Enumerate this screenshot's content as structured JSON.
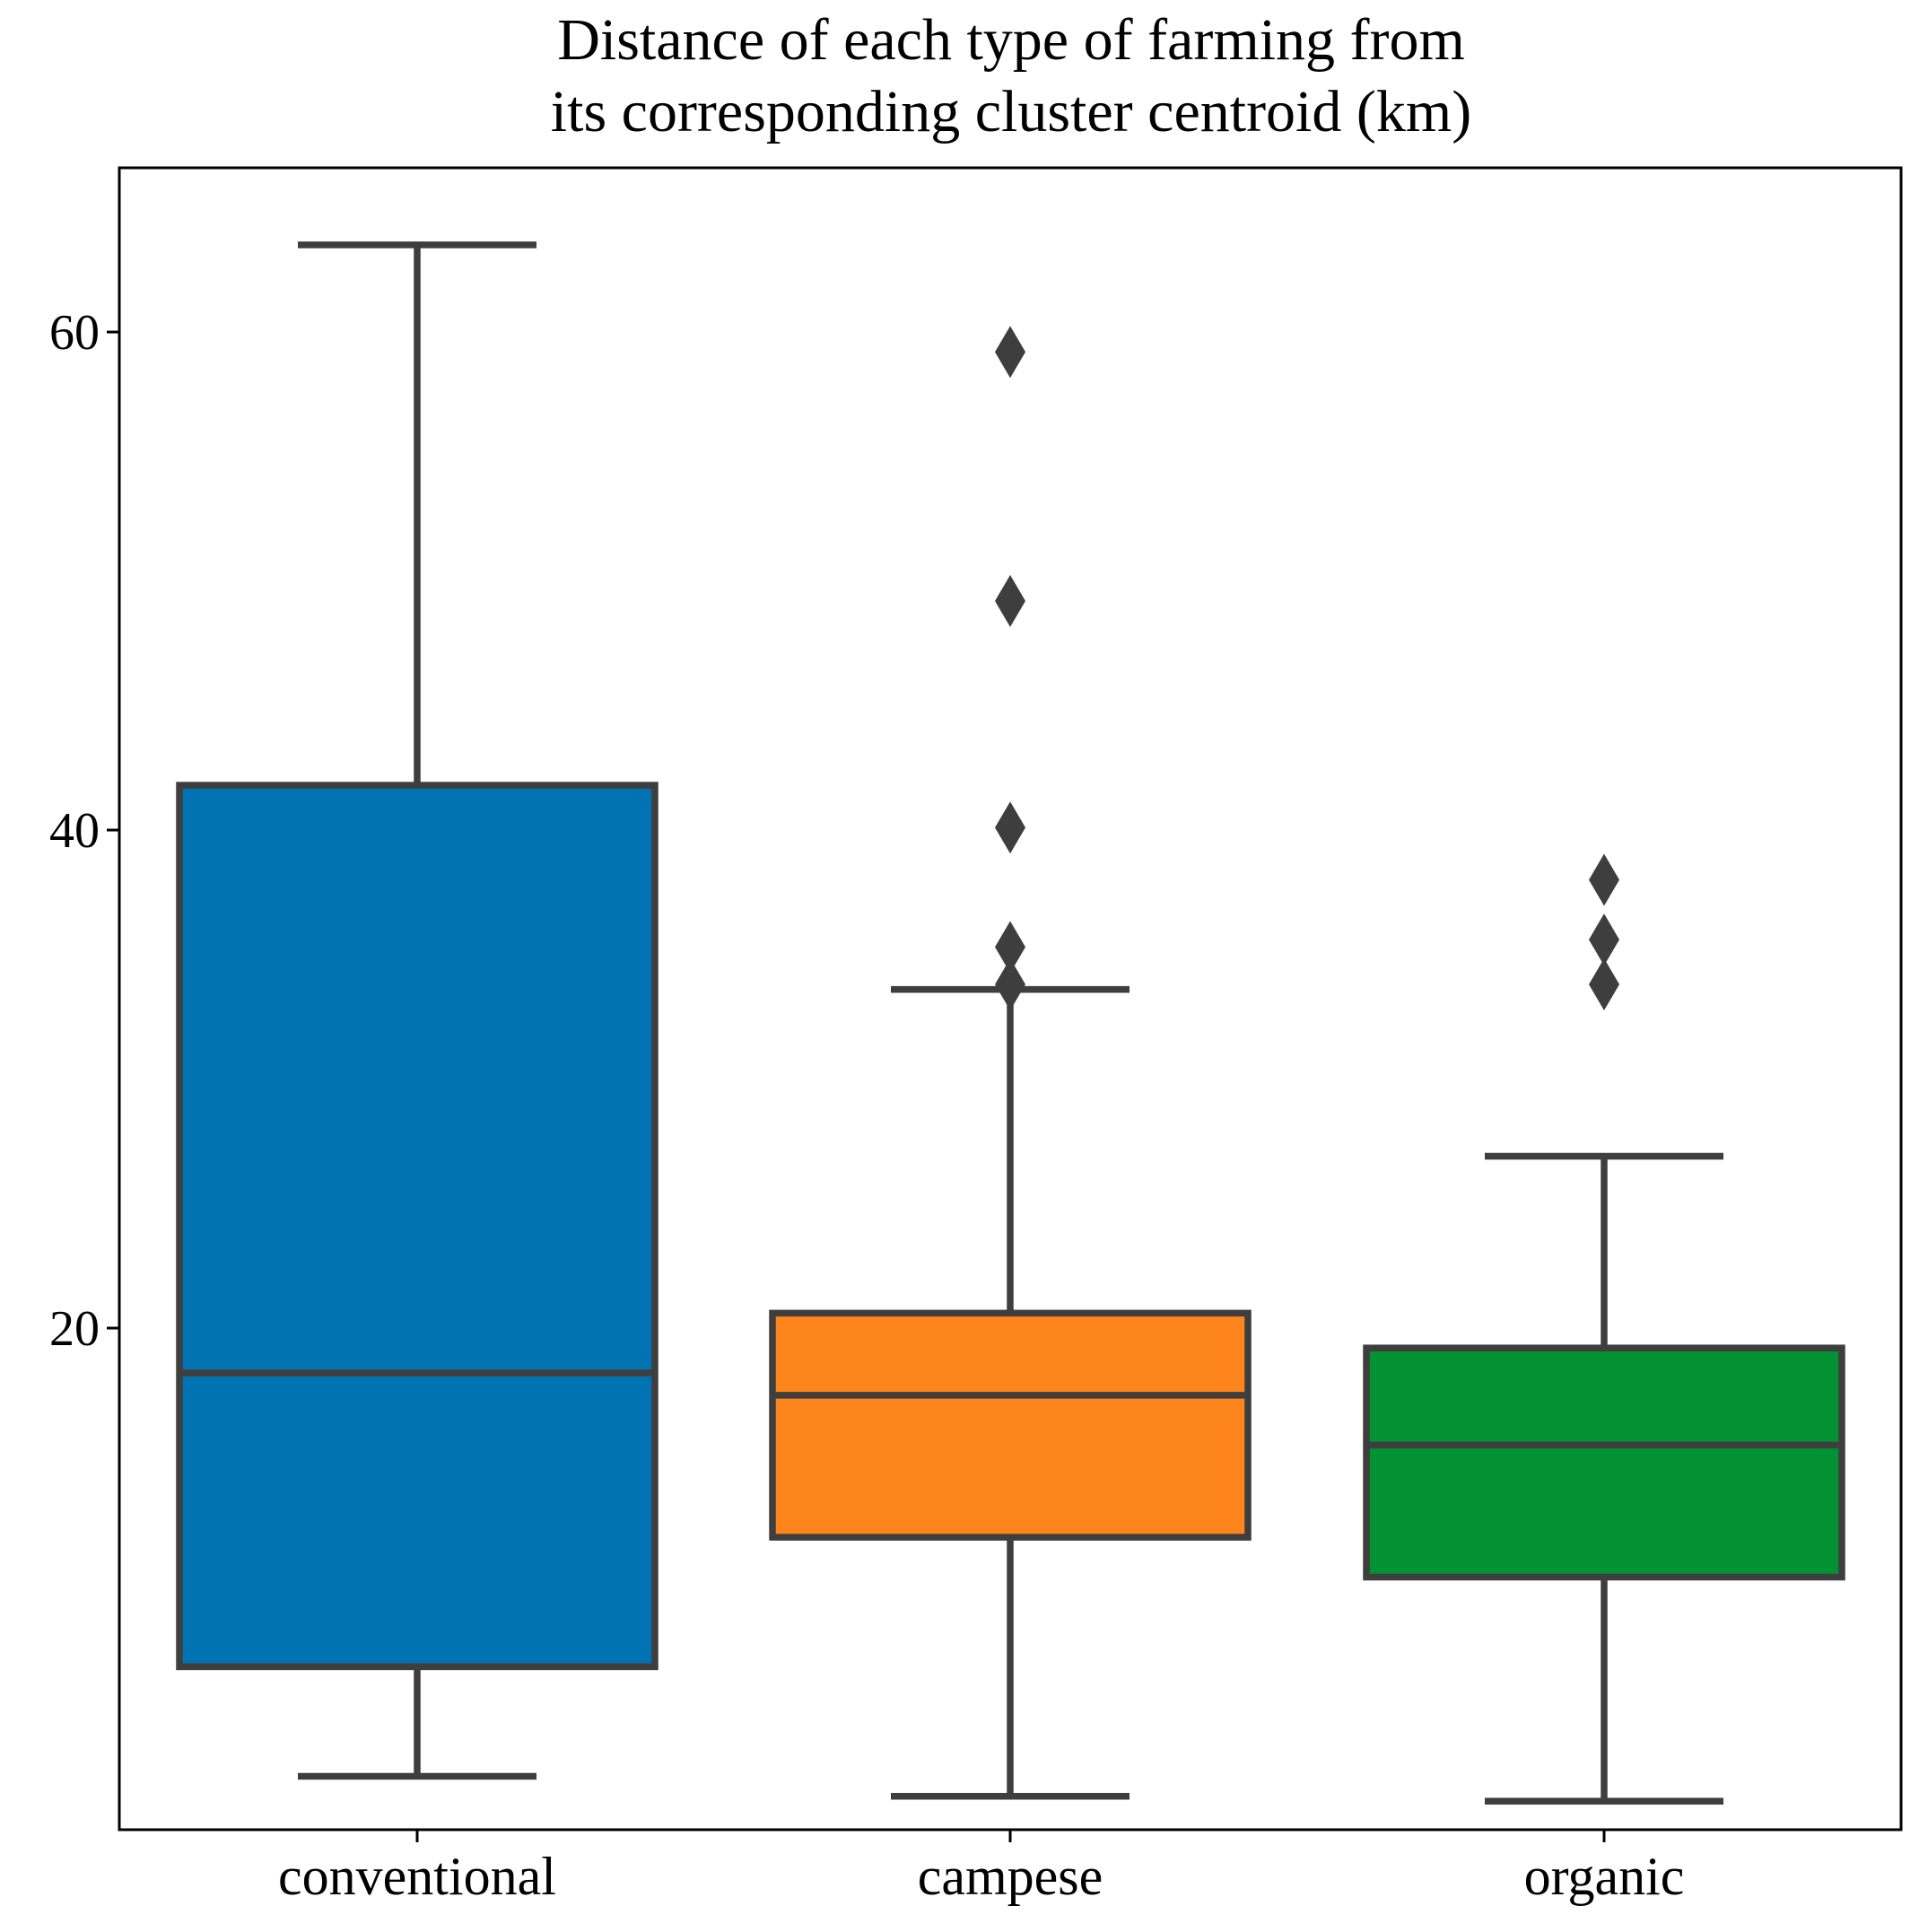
{
  "chart_data": {
    "type": "boxplot",
    "title": [
      "Distance of each type of farming from",
      "its corresponding cluster centroid (km)"
    ],
    "xlabel": "",
    "ylabel": "",
    "ylim": [
      -2,
      67
    ],
    "yticks": [
      20,
      40,
      60
    ],
    "ytick_labels": [
      "20",
      "40",
      "60"
    ],
    "grid": false,
    "legend": "none",
    "categories": [
      "conventional",
      "campese",
      "organic"
    ],
    "series": [
      {
        "name": "conventional",
        "color": "#0173b2",
        "whisker_low": 2.0,
        "q1": 6.4,
        "median": 18.2,
        "q3": 41.8,
        "whisker_high": 63.5,
        "outliers": []
      },
      {
        "name": "campese",
        "color": "#fe851b",
        "whisker_low": 1.2,
        "q1": 11.6,
        "median": 17.3,
        "q3": 20.6,
        "whisker_high": 33.6,
        "outliers": [
          59.2,
          49.2,
          40.1,
          35.3,
          33.8
        ]
      },
      {
        "name": "organic",
        "color": "#029133",
        "whisker_low": 1.0,
        "q1": 10.0,
        "median": 15.3,
        "q3": 19.2,
        "whisker_high": 26.9,
        "outliers": [
          38.0,
          35.6,
          33.8
        ]
      }
    ],
    "line_color": "#3e3e3e"
  }
}
